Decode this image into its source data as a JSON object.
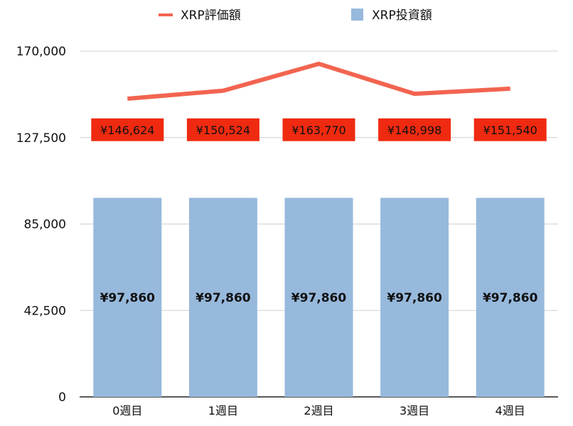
{
  "chart_data": {
    "type": "bar",
    "categories": [
      "0週目",
      "1週目",
      "2週目",
      "3週目",
      "4週目"
    ],
    "ylim": [
      0,
      170000
    ],
    "yticks": [
      0,
      42500,
      85000,
      127500,
      170000
    ],
    "ytick_labels": [
      "0",
      "42,500",
      "85,000",
      "127,500",
      "170,000"
    ],
    "grid": true,
    "legend_position": "top",
    "series": [
      {
        "name": "XRP評価額",
        "type": "line",
        "color": "#f26450",
        "values": [
          146624,
          150524,
          163770,
          148998,
          151540
        ],
        "labels": [
          "¥146,624",
          "¥150,524",
          "¥163,770",
          "¥148,998",
          "¥151,540"
        ],
        "label_color": "#ef2a10"
      },
      {
        "name": "XRP投資額",
        "type": "bar",
        "color": "#97b9dc",
        "values": [
          97860,
          97860,
          97860,
          97860,
          97860
        ],
        "labels": [
          "¥97,860",
          "¥97,860",
          "¥97,860",
          "¥97,860",
          "¥97,860"
        ]
      }
    ]
  }
}
